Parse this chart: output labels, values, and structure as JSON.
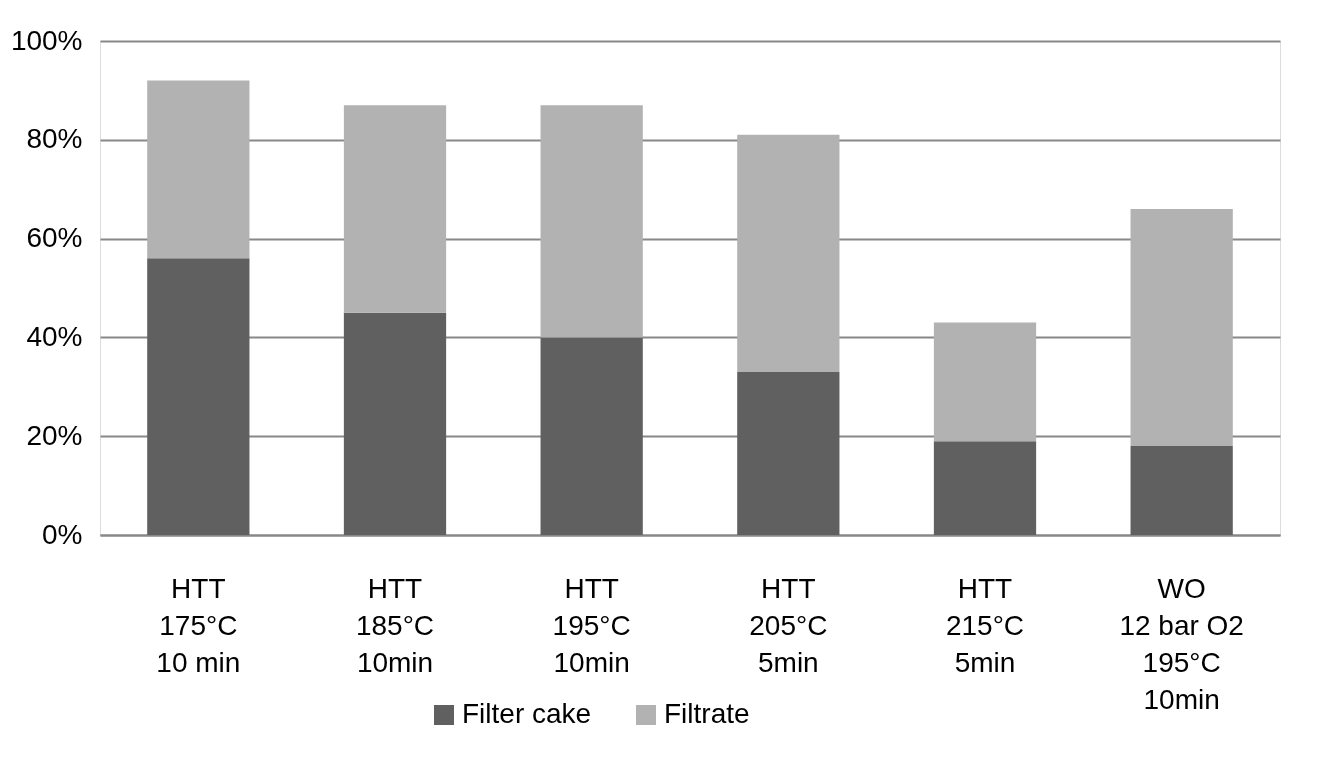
{
  "chart_data": {
    "type": "bar",
    "stacked": true,
    "categories": [
      "HTT\n175°C\n10 min",
      "HTT\n185°C\n10min",
      "HTT\n195°C\n10min",
      "HTT\n205°C\n5min",
      "HTT\n215°C\n5min",
      "WO\n12 bar O2\n195°C\n10min"
    ],
    "series": [
      {
        "name": "Filter cake",
        "color": "#606060",
        "values": [
          56,
          45,
          40,
          33,
          19,
          18
        ]
      },
      {
        "name": "Filtrate",
        "color": "#b2b2b2",
        "values": [
          36,
          42,
          47,
          48,
          24,
          48
        ]
      }
    ],
    "ylim": [
      0,
      100
    ],
    "yticks": [
      {
        "value": 0,
        "label": "0%"
      },
      {
        "value": 20,
        "label": "20%"
      },
      {
        "value": 40,
        "label": "40%"
      },
      {
        "value": 60,
        "label": "60%"
      },
      {
        "value": 80,
        "label": "80%"
      },
      {
        "value": 100,
        "label": "100%"
      }
    ],
    "grid": "y",
    "legend": "bottom"
  }
}
